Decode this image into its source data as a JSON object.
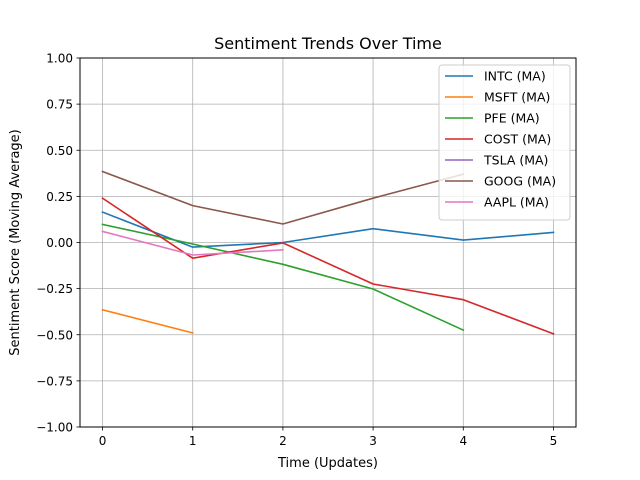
{
  "chart_data": {
    "type": "line",
    "title": "Sentiment Trends Over Time",
    "xlabel": "Time (Updates)",
    "ylabel": "Sentiment Score (Moving Average)",
    "xlim": [
      -0.25,
      5.25
    ],
    "ylim": [
      -1.0,
      1.0
    ],
    "xticks": [
      0,
      1,
      2,
      3,
      4,
      5
    ],
    "xtick_labels": [
      "0",
      "1",
      "2",
      "3",
      "4",
      "5"
    ],
    "yticks": [
      -1.0,
      -0.75,
      -0.5,
      -0.25,
      0.0,
      0.25,
      0.5,
      0.75,
      1.0
    ],
    "ytick_labels": [
      "−1.00",
      "−0.75",
      "−0.50",
      "−0.25",
      "0.00",
      "0.25",
      "0.50",
      "0.75",
      "1.00"
    ],
    "grid": true,
    "legend_position": "top-right",
    "series": [
      {
        "name": "INTC (MA)",
        "color": "#1f77b4",
        "x": [
          0,
          1,
          2,
          3,
          4,
          5
        ],
        "y": [
          0.165,
          -0.025,
          0.0,
          0.075,
          0.013,
          0.055
        ]
      },
      {
        "name": "MSFT (MA)",
        "color": "#ff7f0e",
        "x": [
          0,
          1
        ],
        "y": [
          -0.365,
          -0.49
        ]
      },
      {
        "name": "PFE (MA)",
        "color": "#2ca02c",
        "x": [
          0,
          1,
          2,
          3,
          4
        ],
        "y": [
          0.098,
          -0.008,
          -0.118,
          -0.252,
          -0.475
        ]
      },
      {
        "name": "COST (MA)",
        "color": "#d62728",
        "x": [
          0,
          1,
          2,
          3,
          4,
          5
        ],
        "y": [
          0.24,
          -0.085,
          -0.002,
          -0.225,
          -0.31,
          -0.495
        ]
      },
      {
        "name": "TSLA (MA)",
        "color": "#9467bd",
        "x": [],
        "y": []
      },
      {
        "name": "GOOG (MA)",
        "color": "#8c564b",
        "x": [
          0,
          1,
          2,
          3,
          4
        ],
        "y": [
          0.385,
          0.2,
          0.1,
          0.24,
          0.37
        ]
      },
      {
        "name": "AAPL (MA)",
        "color": "#e377c2",
        "x": [
          0,
          1,
          2
        ],
        "y": [
          0.06,
          -0.068,
          -0.04
        ]
      }
    ]
  }
}
